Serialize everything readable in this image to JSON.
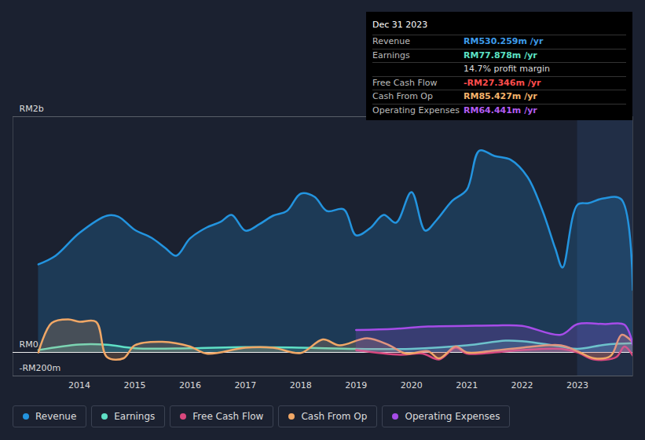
{
  "chart_data": {
    "type": "area",
    "xlim": [
      2012.8,
      2024.0
    ],
    "xticks": [
      2014,
      2015,
      2016,
      2017,
      2018,
      2019,
      2020,
      2021,
      2022,
      2023
    ],
    "ylim": [
      -200,
      2000
    ],
    "yticks": [
      {
        "value": -200,
        "label": "-RM200m"
      },
      {
        "value": 0,
        "label": "RM0"
      },
      {
        "value": 2000,
        "label": "RM2b"
      }
    ],
    "grid": true,
    "highlight_x": [
      2023,
      2024.0
    ],
    "series": [
      {
        "name": "Revenue",
        "color": "#2394df",
        "x": [
          2013.26,
          2013.57,
          2014.0,
          2014.5,
          2014.7,
          2015.0,
          2015.3,
          2015.55,
          2015.75,
          2016.0,
          2016.3,
          2016.55,
          2016.75,
          2017.0,
          2017.25,
          2017.5,
          2017.75,
          2018.0,
          2018.25,
          2018.47,
          2018.78,
          2019.0,
          2019.25,
          2019.5,
          2019.72,
          2020.0,
          2020.25,
          2020.45,
          2020.74,
          2021.0,
          2021.23,
          2021.5,
          2021.8,
          2022.1,
          2022.37,
          2022.6,
          2022.73,
          2023.0,
          2023.2,
          2023.47,
          2023.79,
          2024.0
        ],
        "values": [
          747,
          820,
          1013,
          1160,
          1153,
          1040,
          973,
          887,
          820,
          967,
          1060,
          1107,
          1167,
          1033,
          1087,
          1160,
          1200,
          1347,
          1320,
          1200,
          1213,
          993,
          1053,
          1167,
          1100,
          1360,
          1033,
          1120,
          1287,
          1380,
          1713,
          1667,
          1633,
          1487,
          1200,
          880,
          720,
          1253,
          1267,
          1307,
          1300,
          530.259
        ]
      },
      {
        "name": "Earnings",
        "color": "#5fe0c6",
        "x": [
          2013.26,
          2014.0,
          2014.5,
          2015.0,
          2016.0,
          2017.0,
          2018.0,
          2019.0,
          2020.0,
          2021.0,
          2021.7,
          2022.0,
          2022.7,
          2023.0,
          2023.5,
          2024.0
        ],
        "values": [
          20,
          67,
          65,
          35,
          35,
          45,
          40,
          30,
          30,
          60,
          100,
          95,
          50,
          30,
          65,
          77.878
        ]
      },
      {
        "name": "Free Cash Flow",
        "color": "#d9487e",
        "x": [
          2019.0,
          2019.8,
          2020.2,
          2020.5,
          2020.8,
          2021.0,
          2021.5,
          2022.0,
          2022.7,
          2023.0,
          2023.3,
          2023.7,
          2023.85,
          2024.0
        ],
        "values": [
          20,
          -20,
          -10,
          -60,
          40,
          -10,
          0,
          20,
          30,
          0,
          -60,
          -40,
          50,
          -27.346
        ]
      },
      {
        "name": "Cash From Op",
        "color": "#f0a766",
        "x": [
          2013.26,
          2013.5,
          2013.8,
          2014.0,
          2014.3,
          2014.5,
          2014.8,
          2015.0,
          2015.5,
          2016.0,
          2016.3,
          2017.0,
          2017.5,
          2018.0,
          2018.4,
          2018.7,
          2019.2,
          2019.6,
          2019.9,
          2020.3,
          2020.5,
          2020.8,
          2021.0,
          2021.4,
          2022.0,
          2022.7,
          2023.0,
          2023.3,
          2023.6,
          2023.8,
          2024.0
        ],
        "values": [
          0,
          250,
          280,
          260,
          260,
          -40,
          -50,
          60,
          90,
          50,
          -10,
          40,
          40,
          -5,
          110,
          60,
          120,
          60,
          -10,
          10,
          -50,
          50,
          0,
          10,
          40,
          60,
          10,
          -50,
          -30,
          150,
          85.427
        ]
      },
      {
        "name": "Operating Expenses",
        "color": "#a64ce8",
        "x": [
          2019.0,
          2019.7,
          2020.3,
          2021.0,
          2021.5,
          2022.0,
          2022.7,
          2023.0,
          2023.5,
          2023.85,
          2024.0
        ],
        "values": [
          190,
          200,
          220,
          225,
          228,
          225,
          150,
          240,
          240,
          235,
          64.441
        ]
      }
    ],
    "tooltip": {
      "title": "Dec 31 2023",
      "rows": [
        {
          "label": "Revenue",
          "value": "RM530.259m /yr",
          "color": "#3d9be9"
        },
        {
          "label": "Earnings",
          "value": "RM77.878m /yr",
          "color": "#5ce1c4"
        },
        {
          "value": "14.7% profit margin",
          "color": "#dddddd"
        },
        {
          "label": "Free Cash Flow",
          "value": "-RM27.346m /yr",
          "color": "#ff4d4d"
        },
        {
          "label": "Cash From Op",
          "value": "RM85.427m /yr",
          "color": "#f5b36b"
        },
        {
          "label": "Operating Expenses",
          "value": "RM64.441m /yr",
          "color": "#b25cf0"
        }
      ]
    }
  }
}
